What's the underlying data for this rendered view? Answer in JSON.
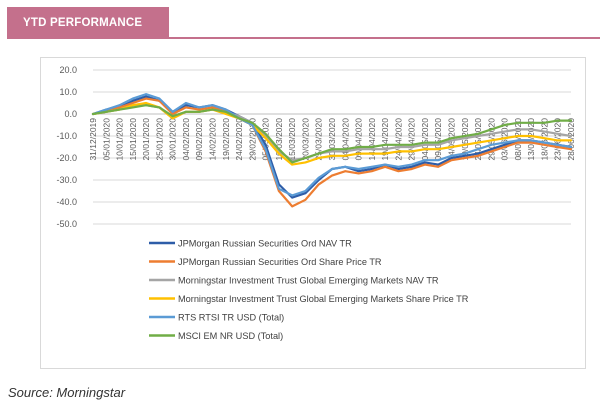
{
  "header": {
    "title": "YTD PERFORMANCE"
  },
  "source": "Source: Morningstar",
  "colors": {
    "accent": "#c4708c"
  },
  "chart_data": {
    "type": "line",
    "title": "",
    "xlabel": "",
    "ylabel": "",
    "ylim": [
      -50,
      20
    ],
    "yticks": [
      "20.0",
      "10.0",
      "0.0",
      "-10.0",
      "-20.0",
      "-30.0",
      "-40.0",
      "-50.0"
    ],
    "ytick_values": [
      20,
      10,
      0,
      -10,
      -20,
      -30,
      -40,
      -50
    ],
    "legend_position": "bottom",
    "x": [
      "31/12/2019",
      "05/01/2020",
      "10/01/2020",
      "15/01/2020",
      "20/01/2020",
      "25/01/2020",
      "30/01/2020",
      "04/02/2020",
      "09/02/2020",
      "14/02/2020",
      "19/02/2020",
      "24/02/2020",
      "29/02/2020",
      "05/03/2020",
      "10/03/2020",
      "15/03/2020",
      "20/03/2020",
      "25/03/2020",
      "30/03/2020",
      "04/04/2020",
      "09/04/2020",
      "14/04/2020",
      "19/04/2020",
      "24/04/2020",
      "29/04/2020",
      "04/05/2020",
      "09/05/2020",
      "14/05/2020",
      "19/05/2020",
      "24/05/2020",
      "29/05/2020",
      "03/06/2020",
      "08/06/2020",
      "13/06/2020",
      "18/06/2020",
      "23/06/2020",
      "28/06/2020"
    ],
    "series": [
      {
        "name": "JPMorgan Russian Securities Ord NAV TR",
        "color": "#2e5da8",
        "values": [
          0,
          2,
          3,
          6,
          8,
          6,
          1,
          4,
          3,
          4,
          2,
          -1,
          -4,
          -14,
          -32,
          -38,
          -36,
          -30,
          -25,
          -24,
          -26,
          -25,
          -23,
          -25,
          -24,
          -22,
          -23,
          -20,
          -19,
          -18,
          -16,
          -14,
          -12,
          -12,
          -13,
          -14,
          -15
        ]
      },
      {
        "name": "JPMorgan Russian Securities Ord Share Price TR",
        "color": "#ed7d31",
        "values": [
          0,
          1,
          3,
          5,
          7,
          6,
          0,
          3,
          2,
          3,
          1,
          -2,
          -5,
          -17,
          -35,
          -42,
          -39,
          -32,
          -28,
          -26,
          -27,
          -26,
          -24,
          -26,
          -25,
          -23,
          -24,
          -21,
          -20,
          -19,
          -17,
          -15,
          -13,
          -13,
          -14,
          -15,
          -16
        ]
      },
      {
        "name": "Morningstar Investment Trust Global Emerging Markets NAV TR",
        "color": "#a5a5a5",
        "values": [
          0,
          1,
          2,
          4,
          4,
          3,
          -2,
          1,
          1,
          2,
          1,
          -1,
          -4,
          -10,
          -17,
          -21,
          -20,
          -18,
          -17,
          -17,
          -16,
          -16,
          -16,
          -15,
          -15,
          -14,
          -14,
          -12,
          -11,
          -10,
          -9,
          -8,
          -7,
          -7,
          -8,
          -9,
          -10
        ]
      },
      {
        "name": "Morningstar Investment Trust Global Emerging Markets Share Price TR",
        "color": "#ffc000",
        "values": [
          0,
          1,
          2,
          4,
          5,
          3,
          -2,
          1,
          1,
          2,
          0,
          -2,
          -5,
          -11,
          -18,
          -23,
          -22,
          -20,
          -19,
          -19,
          -18,
          -18,
          -18,
          -17,
          -17,
          -16,
          -16,
          -15,
          -14,
          -13,
          -12,
          -11,
          -10,
          -10,
          -11,
          -12,
          -12
        ]
      },
      {
        "name": "RTS RTSI TR USD (Total)",
        "color": "#5b9bd5",
        "values": [
          0,
          2,
          4,
          7,
          9,
          7,
          1,
          5,
          3,
          4,
          2,
          -2,
          -5,
          -16,
          -34,
          -37,
          -35,
          -29,
          -25,
          -24,
          -25,
          -24,
          -23,
          -24,
          -23,
          -21,
          -21,
          -19,
          -18,
          -16,
          -14,
          -13,
          -12,
          -12,
          -13,
          -14,
          -15
        ]
      },
      {
        "name": "MSCI EM NR USD (Total)",
        "color": "#70ad47",
        "values": [
          0,
          1,
          2,
          3,
          4,
          3,
          -1,
          1,
          1,
          2,
          1,
          -2,
          -4,
          -9,
          -16,
          -22,
          -20,
          -18,
          -16,
          -16,
          -15,
          -15,
          -14,
          -14,
          -14,
          -13,
          -13,
          -11,
          -10,
          -9,
          -7,
          -5,
          -4,
          -4,
          -4,
          -3,
          -3
        ]
      }
    ]
  }
}
